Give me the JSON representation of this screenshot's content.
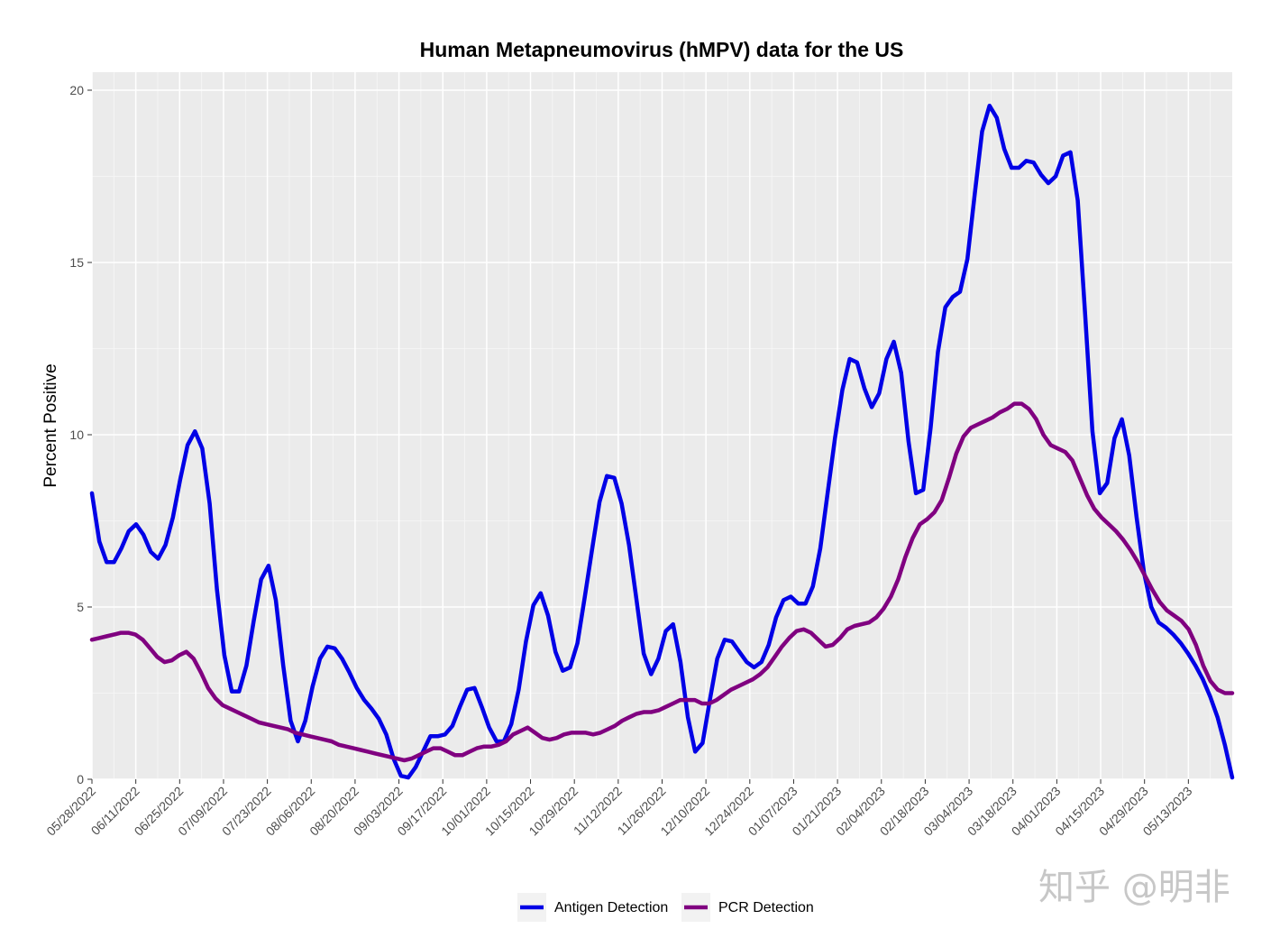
{
  "chart_data": {
    "type": "line",
    "title": "Human Metapneumovirus (hMPV) data for the US",
    "xlabel": "",
    "ylabel": "Percent Positive",
    "ylim": [
      0,
      20.5
    ],
    "yticks": [
      0,
      5,
      10,
      15,
      20
    ],
    "grid": true,
    "legend": "bottom",
    "x_tick_labels": [
      "05/28/2022",
      "06/11/2022",
      "06/25/2022",
      "07/09/2022",
      "07/23/2022",
      "08/06/2022",
      "08/20/2022",
      "09/03/2022",
      "09/17/2022",
      "10/01/2022",
      "10/15/2022",
      "10/29/2022",
      "11/12/2022",
      "11/26/2022",
      "12/10/2022",
      "12/24/2022",
      "01/07/2023",
      "01/21/2023",
      "02/04/2023",
      "02/18/2023",
      "03/04/2023",
      "03/18/2023",
      "04/01/2023",
      "04/15/2023",
      "04/29/2023",
      "05/13/2023"
    ],
    "x_start": "05/28/2022",
    "x_end": "05/27/2023",
    "series": [
      {
        "name": "Antigen Detection",
        "color": "#0000e6",
        "values": [
          8.3,
          6.9,
          6.3,
          6.3,
          6.7,
          7.2,
          7.4,
          7.1,
          6.6,
          6.4,
          6.8,
          7.6,
          8.7,
          9.7,
          10.1,
          9.6,
          8.0,
          5.5,
          3.6,
          2.55,
          2.55,
          3.3,
          4.6,
          5.8,
          6.2,
          5.2,
          3.3,
          1.7,
          1.1,
          1.7,
          2.7,
          3.5,
          3.85,
          3.8,
          3.5,
          3.1,
          2.65,
          2.3,
          2.05,
          1.75,
          1.3,
          0.6,
          0.1,
          0.05,
          0.35,
          0.8,
          1.25,
          1.25,
          1.3,
          1.55,
          2.1,
          2.6,
          2.65,
          2.1,
          1.5,
          1.1,
          1.1,
          1.6,
          2.6,
          4.0,
          5.05,
          5.4,
          4.75,
          3.7,
          3.15,
          3.25,
          3.95,
          5.3,
          6.7,
          8.05,
          8.8,
          8.75,
          8.0,
          6.8,
          5.25,
          3.65,
          3.05,
          3.5,
          4.3,
          4.5,
          3.4,
          1.8,
          0.8,
          1.05,
          2.3,
          3.5,
          4.05,
          4.0,
          3.7,
          3.4,
          3.25,
          3.4,
          3.9,
          4.7,
          5.2,
          5.3,
          5.1,
          5.1,
          5.6,
          6.7,
          8.3,
          9.9,
          11.3,
          12.2,
          12.1,
          11.35,
          10.8,
          11.2,
          12.2,
          12.7,
          11.8,
          9.8,
          8.3,
          8.4,
          10.2,
          12.4,
          13.7,
          14.0,
          14.15,
          15.1,
          17.0,
          18.8,
          19.55,
          19.2,
          18.3,
          17.75,
          17.75,
          17.95,
          17.9,
          17.55,
          17.3,
          17.5,
          18.1,
          18.2,
          16.8,
          13.5,
          10.1,
          8.3,
          8.6,
          9.9,
          10.45,
          9.4,
          7.6,
          6.0,
          5.0,
          4.55,
          4.4,
          4.2,
          3.95,
          3.65,
          3.3,
          2.9,
          2.4,
          1.8,
          1.0,
          0.05
        ]
      },
      {
        "name": "PCR Detection",
        "color": "#800080",
        "values": [
          4.05,
          4.1,
          4.15,
          4.2,
          4.25,
          4.25,
          4.2,
          4.05,
          3.8,
          3.55,
          3.4,
          3.45,
          3.6,
          3.7,
          3.5,
          3.1,
          2.65,
          2.35,
          2.15,
          2.05,
          1.95,
          1.85,
          1.75,
          1.65,
          1.6,
          1.55,
          1.5,
          1.45,
          1.35,
          1.3,
          1.25,
          1.2,
          1.15,
          1.1,
          1.0,
          0.95,
          0.9,
          0.85,
          0.8,
          0.75,
          0.7,
          0.65,
          0.6,
          0.55,
          0.6,
          0.7,
          0.8,
          0.9,
          0.9,
          0.8,
          0.7,
          0.7,
          0.8,
          0.9,
          0.95,
          0.95,
          1.0,
          1.1,
          1.3,
          1.4,
          1.5,
          1.35,
          1.2,
          1.15,
          1.2,
          1.3,
          1.35,
          1.35,
          1.35,
          1.3,
          1.35,
          1.45,
          1.55,
          1.7,
          1.8,
          1.9,
          1.95,
          1.95,
          2.0,
          2.1,
          2.2,
          2.3,
          2.3,
          2.3,
          2.2,
          2.2,
          2.3,
          2.45,
          2.6,
          2.7,
          2.8,
          2.9,
          3.05,
          3.25,
          3.55,
          3.85,
          4.1,
          4.3,
          4.35,
          4.25,
          4.05,
          3.85,
          3.9,
          4.1,
          4.35,
          4.45,
          4.5,
          4.55,
          4.7,
          4.95,
          5.3,
          5.8,
          6.45,
          7.0,
          7.4,
          7.55,
          7.75,
          8.1,
          8.75,
          9.45,
          9.95,
          10.2,
          10.3,
          10.4,
          10.5,
          10.65,
          10.75,
          10.9,
          10.9,
          10.75,
          10.45,
          10.0,
          9.7,
          9.6,
          9.5,
          9.25,
          8.75,
          8.25,
          7.85,
          7.6,
          7.4,
          7.2,
          6.95,
          6.65,
          6.3,
          5.9,
          5.5,
          5.15,
          4.9,
          4.75,
          4.6,
          4.35,
          3.9,
          3.3,
          2.85,
          2.6,
          2.5,
          2.5
        ]
      }
    ]
  },
  "watermark": "知乎 @明非"
}
